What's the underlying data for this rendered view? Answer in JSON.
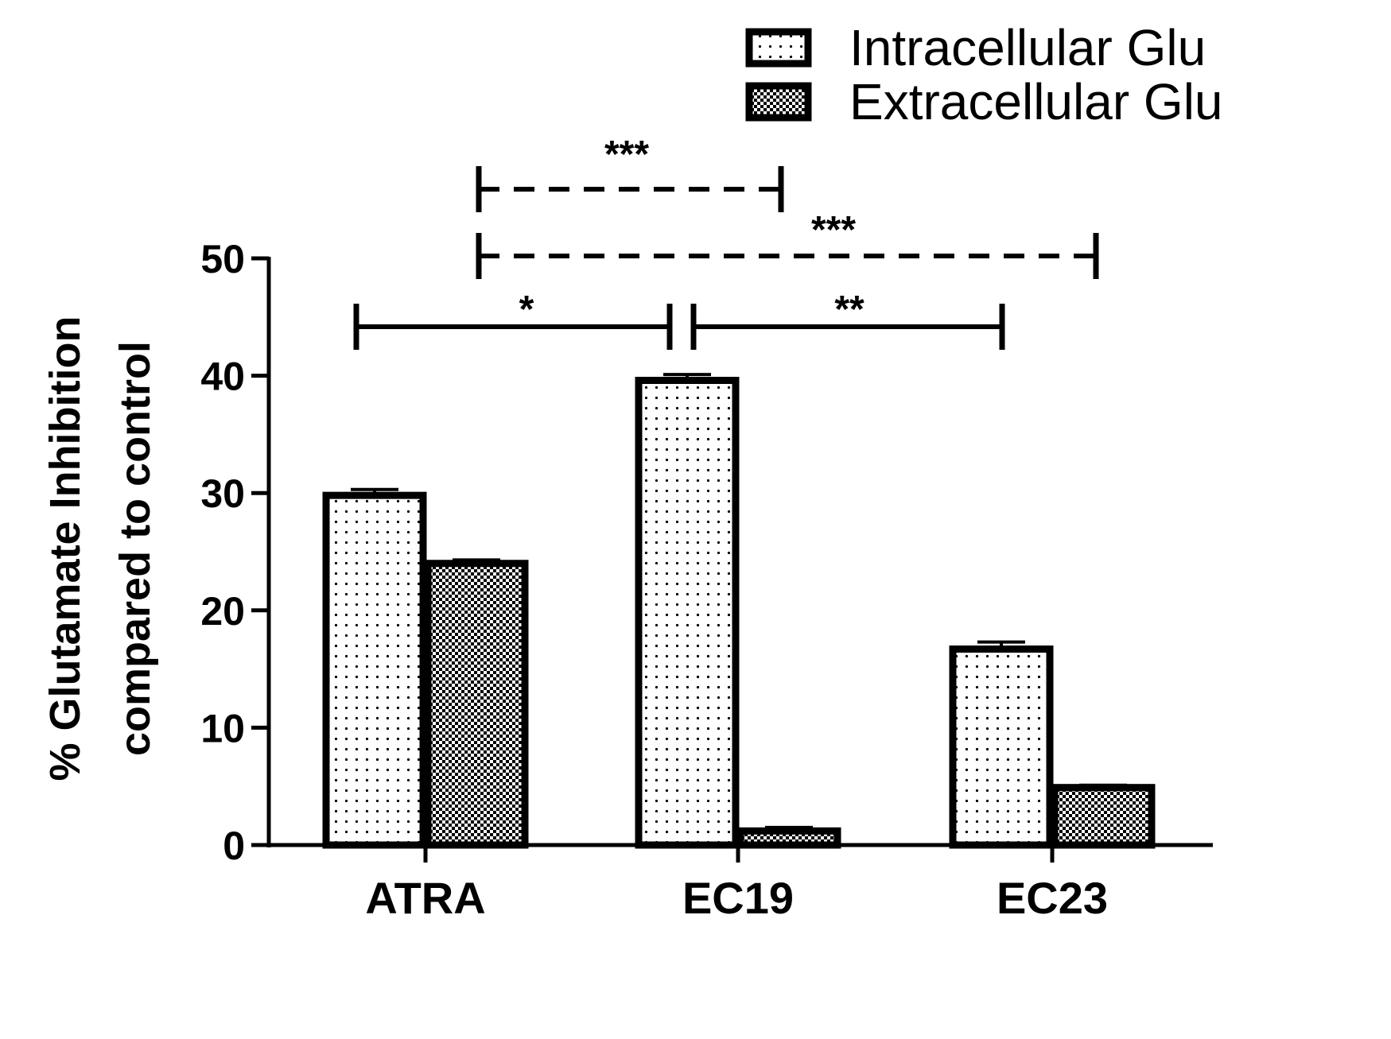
{
  "chart_data": {
    "type": "bar",
    "categories": [
      "ATRA",
      "EC19",
      "EC23"
    ],
    "series": [
      {
        "name": "Intracellular Glu",
        "values": [
          29.8,
          39.6,
          16.7
        ],
        "errors": [
          0.5,
          0.5,
          0.6
        ],
        "pattern": "dots-sparse"
      },
      {
        "name": "Extracellular Glu",
        "values": [
          24.0,
          1.2,
          4.9
        ],
        "errors": [
          0.3,
          0.3,
          0.2
        ],
        "pattern": "dots-dense"
      }
    ],
    "ylabel_line1": "% Glutamate Inhibition",
    "ylabel_line2": "compared to control",
    "ylim": [
      0,
      50
    ],
    "yticks": [
      0,
      10,
      20,
      30,
      40,
      50
    ],
    "grid": false,
    "legend_position": "top-right",
    "significance": [
      {
        "label": "***",
        "from": "ATRA",
        "to": "EC19",
        "style": "dashed"
      },
      {
        "label": "***",
        "from": "ATRA",
        "to": "EC23",
        "style": "dashed"
      },
      {
        "label": "*",
        "from": "ATRA",
        "to": "EC19",
        "style": "solid"
      },
      {
        "label": "**",
        "from": "EC19",
        "to": "EC23",
        "style": "solid"
      }
    ],
    "colors": {
      "bar_fill": "#ffffff",
      "bar_stroke": "#000000",
      "pattern": "#000000"
    }
  }
}
